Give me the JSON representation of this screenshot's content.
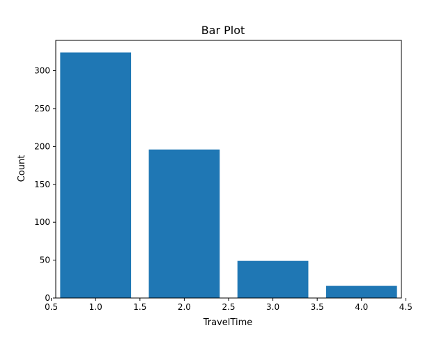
{
  "chart_data": {
    "type": "bar",
    "title": "Bar Plot",
    "xlabel": "TravelTime",
    "ylabel": "Count",
    "x": [
      1.0,
      2.0,
      3.0,
      4.0
    ],
    "values": [
      324,
      196,
      49,
      16
    ],
    "bar_width": 0.8,
    "xlim": [
      0.55,
      4.45
    ],
    "ylim": [
      0,
      340
    ],
    "xticks": [
      0.5,
      1.0,
      1.5,
      2.0,
      2.5,
      3.0,
      3.5,
      4.0,
      4.5
    ],
    "xtick_labels": [
      "0.5",
      "1.0",
      "1.5",
      "2.0",
      "2.5",
      "3.0",
      "3.5",
      "4.0",
      "4.5"
    ],
    "yticks": [
      0,
      50,
      100,
      150,
      200,
      250,
      300
    ],
    "ytick_labels": [
      "0",
      "50",
      "100",
      "150",
      "200",
      "250",
      "300"
    ],
    "grid": false,
    "legend": "none",
    "bar_color": "#1f77b4"
  }
}
